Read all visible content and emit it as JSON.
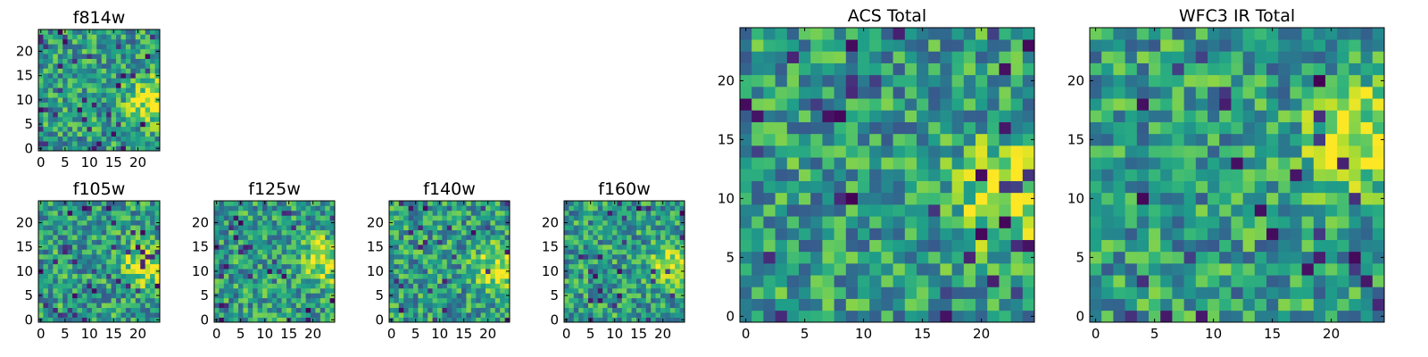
{
  "chart_data": [
    {
      "type": "heatmap",
      "id": "f814w",
      "title": "f814w",
      "grid": [
        25,
        25
      ],
      "colormap": "viridis",
      "seed": 11,
      "xlim": [
        -0.5,
        24.5
      ],
      "ylim": [
        -0.5,
        24.5
      ],
      "xticks": [
        0,
        5,
        10,
        15,
        20
      ],
      "yticks": [
        0,
        5,
        10,
        15,
        20
      ],
      "hotspot": {
        "x": 23,
        "y": 10
      }
    },
    {
      "type": "heatmap",
      "id": "f105w",
      "title": "f105w",
      "grid": [
        25,
        25
      ],
      "colormap": "viridis",
      "seed": 23,
      "xlim": [
        -0.5,
        24.5
      ],
      "ylim": [
        -0.5,
        24.5
      ],
      "xticks": [
        0,
        5,
        10,
        15,
        20
      ],
      "yticks": [
        0,
        5,
        10,
        15,
        20
      ],
      "hotspot": {
        "x": 22,
        "y": 11
      }
    },
    {
      "type": "heatmap",
      "id": "f125w",
      "title": "f125w",
      "grid": [
        25,
        25
      ],
      "colormap": "viridis",
      "seed": 37,
      "xlim": [
        -0.5,
        24.5
      ],
      "ylim": [
        -0.5,
        24.5
      ],
      "xticks": [
        0,
        5,
        10,
        15,
        20
      ],
      "yticks": [
        0,
        5,
        10,
        15,
        20
      ],
      "hotspot": {
        "x": 23,
        "y": 12
      }
    },
    {
      "type": "heatmap",
      "id": "f140w",
      "title": "f140w",
      "grid": [
        25,
        25
      ],
      "colormap": "viridis",
      "seed": 41,
      "xlim": [
        -0.5,
        24.5
      ],
      "ylim": [
        -0.5,
        24.5
      ],
      "xticks": [
        0,
        5,
        10,
        15,
        20
      ],
      "yticks": [
        0,
        5,
        10,
        15,
        20
      ],
      "hotspot": {
        "x": 22,
        "y": 10
      }
    },
    {
      "type": "heatmap",
      "id": "f160w",
      "title": "f160w",
      "grid": [
        25,
        25
      ],
      "colormap": "viridis",
      "seed": 53,
      "xlim": [
        -0.5,
        24.5
      ],
      "ylim": [
        -0.5,
        24.5
      ],
      "xticks": [
        0,
        5,
        10,
        15,
        20
      ],
      "yticks": [
        0,
        5,
        10,
        15,
        20
      ],
      "hotspot": {
        "x": 22,
        "y": 11
      }
    },
    {
      "type": "heatmap",
      "id": "acs_total",
      "title": "ACS Total",
      "grid": [
        25,
        25
      ],
      "colormap": "viridis",
      "seed": 67,
      "xlim": [
        -0.5,
        24.5
      ],
      "ylim": [
        -0.5,
        24.5
      ],
      "xticks": [
        0,
        5,
        10,
        15,
        20
      ],
      "yticks": [
        0,
        5,
        10,
        15,
        20
      ],
      "hotspot": {
        "x": 23,
        "y": 10
      }
    },
    {
      "type": "heatmap",
      "id": "wfc3_ir_total",
      "title": "WFC3 IR Total",
      "grid": [
        25,
        25
      ],
      "colormap": "viridis",
      "seed": 79,
      "xlim": [
        -0.5,
        24.5
      ],
      "ylim": [
        -0.5,
        24.5
      ],
      "xticks": [
        0,
        5,
        10,
        15,
        20
      ],
      "yticks": [
        0,
        5,
        10,
        15,
        20
      ],
      "hotspot": {
        "x": 23,
        "y": 15
      }
    }
  ]
}
